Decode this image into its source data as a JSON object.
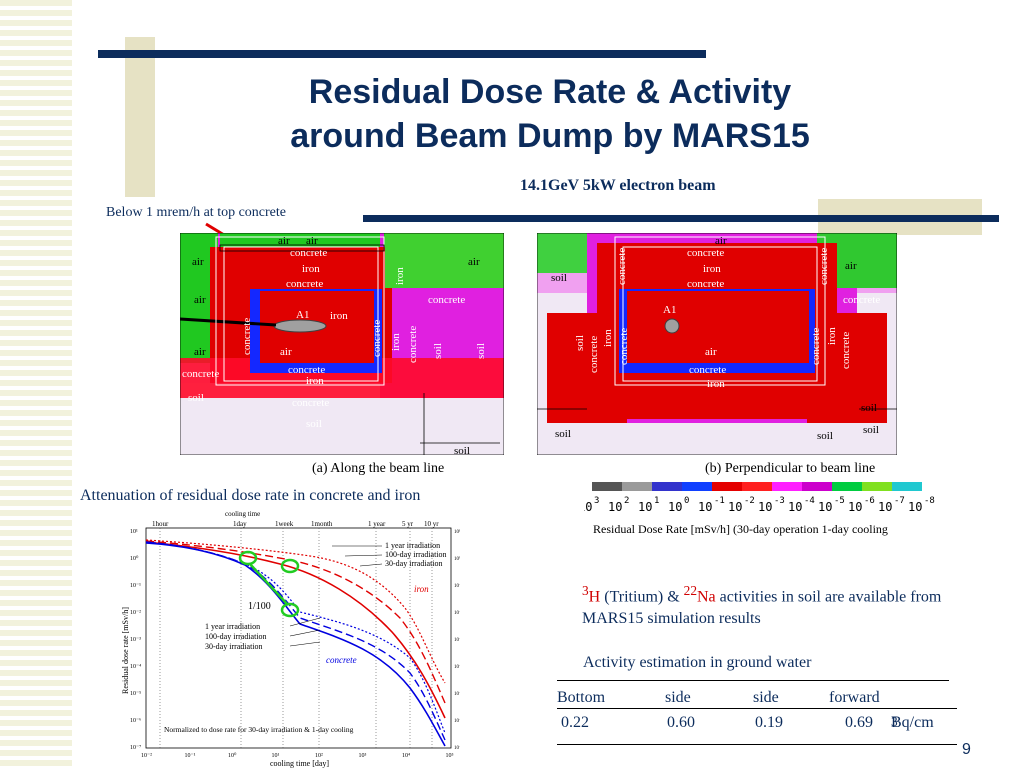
{
  "slide": {
    "title_line1": "Residual Dose Rate & Activity",
    "title_line2": "around Beam Dump by MARS15",
    "subtitle": "14.1GeV 5kW electron beam",
    "note_top": "Below 1 mrem/h at top concrete",
    "page_number": "9",
    "accent_color": "#0c2c5c"
  },
  "map_a": {
    "caption_marker": "(a)",
    "caption": "Along the beam line",
    "labels": {
      "air_top1": "air",
      "air_top2": "air",
      "concrete_top": "concrete",
      "iron_top": "iron",
      "concrete_top2": "concrete",
      "iron_vert": "iron",
      "air_left": "air",
      "air_right": "air",
      "air_left2": "air",
      "concrete_right": "concrete",
      "a1": "A1",
      "iron_in": "iron",
      "concrete_v1": "concrete",
      "concrete_v2": "concrete",
      "iron_v2": "iron",
      "concrete_v3": "concrete",
      "soil_v1": "soil",
      "soil_v2": "soil",
      "air_left3": "air",
      "air_in": "air",
      "concrete_bot1": "concrete",
      "iron_bot": "iron",
      "concrete_left": "concrete",
      "soil_left": "soil",
      "concrete_bot2": "concrete",
      "soil_bot": "soil",
      "soil_br": "soil"
    }
  },
  "map_b": {
    "caption_marker": "(b)",
    "caption": "Perpendicular to beam line",
    "labels": {
      "air_top": "air",
      "concrete_top": "concrete",
      "iron_top": "iron",
      "concrete_top2": "concrete",
      "concrete_vl": "concrete",
      "concrete_vr": "concrete",
      "soil_left": "soil",
      "air_right": "air",
      "concrete_right": "concrete",
      "a1": "A1",
      "soil_v": "soil",
      "iron_v": "iron",
      "concrete_v1": "concrete",
      "concrete_v2": "concrete",
      "concrete_vr2": "concrete",
      "iron_vr": "iron",
      "concrete_vr3": "concrete",
      "air_in": "air",
      "concrete_bot": "concrete",
      "iron_bot": "iron",
      "soil_r1": "soil",
      "soil_bl": "soil",
      "soil_bm": "soil",
      "soil_br": "soil"
    }
  },
  "scale": {
    "colors": [
      "#555555",
      "#9a9a9a",
      "#3333cc",
      "#1040ff",
      "#e40000",
      "#ff2020",
      "#ff20ff",
      "#cc00cc",
      "#00cc40",
      "#80e020",
      "#20c8d0"
    ],
    "exponents": [
      "3",
      "2",
      "1",
      "0",
      "-1",
      "-2",
      "-3",
      "-4",
      "-5",
      "-6",
      "-7",
      "-8"
    ],
    "caption": "Residual Dose Rate [mSv/h] (30-day operation 1-day cooling"
  },
  "attenuation_title": "Attenuation of residual dose rate in concrete and iron",
  "plot": {
    "top_label": "cooling time",
    "top_ticks": [
      "1hour",
      "1day",
      "1week",
      "1month",
      "1 year",
      "5 yr",
      "10 yr"
    ],
    "ylabel": "Residual dose rate [mSv/h]",
    "xlabel": "cooling time [day]",
    "yticks": [
      "10¹",
      "10⁰",
      "10⁻¹",
      "10⁻²",
      "10⁻³",
      "10⁻⁴",
      "10⁻⁵",
      "10⁻⁶",
      "10⁻⁷"
    ],
    "xticks": [
      "10⁻²",
      "10⁻¹",
      "10⁰",
      "10¹",
      "10²",
      "10³",
      "10⁴",
      "10⁵"
    ],
    "iron_label": "iron",
    "concrete_label": "concrete",
    "iron_legend": [
      "1 year irradiation",
      "100-day irradiation",
      "30-day irradiation"
    ],
    "concrete_legend": [
      "1 year irradiation",
      "100-day irradiation",
      "30-day irradiation"
    ],
    "ratio_label": "1/100",
    "footnote": "Normalized to dose rate for 30-day irradiation & 1-day cooling",
    "iron_color": "#e00000",
    "concrete_color": "#0000e0",
    "marker_color": "#22cc22"
  },
  "activity": {
    "h3_sup": "3",
    "h3": "H",
    "h3_rest": " (Tritium)   &  ",
    "na_sup": "22",
    "na": "Na",
    "rest": "  activities in soil are available from  MARS15 simulation results"
  },
  "groundwater": {
    "title": "Activity estimation in ground water",
    "headers": [
      "Bottom",
      "side",
      "side",
      "forward"
    ],
    "values": [
      "0.22",
      "0.60",
      "0.19",
      "0.69"
    ],
    "unit": "Bq/cm",
    "unit_sup": "3"
  }
}
